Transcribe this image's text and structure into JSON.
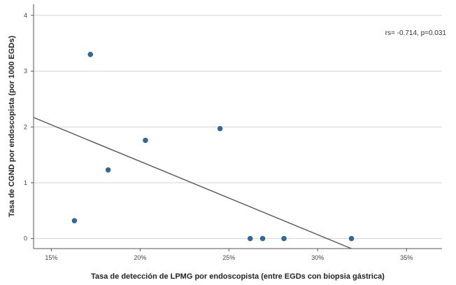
{
  "chart_data": {
    "type": "scatter",
    "title": "",
    "xlabel": "Tasa de detección de LPMG por endoscopista (entre EGDs con biopsia gástrica)",
    "ylabel": "Tasa de CGND por endoscopista (por 1000 EGDs)",
    "xlim": [
      14.0,
      37.0
    ],
    "ylim": [
      -0.18,
      4.2
    ],
    "x_ticks": [
      15,
      20,
      25,
      30,
      35
    ],
    "x_tick_labels": [
      "15%",
      "20%",
      "25%",
      "30%",
      "35%"
    ],
    "y_ticks": [
      0,
      1,
      2,
      3,
      4
    ],
    "y_tick_labels": [
      "0",
      "1",
      "2",
      "3",
      "4"
    ],
    "grid": "horizontal",
    "legend": "none",
    "annotation": "rs= -0.714, p=0.031",
    "point_color": "#2e6b9e",
    "line_color": "#555555",
    "points": [
      {
        "x": 16.3,
        "y": 0.32
      },
      {
        "x": 17.2,
        "y": 3.3
      },
      {
        "x": 18.2,
        "y": 1.23
      },
      {
        "x": 20.3,
        "y": 1.76
      },
      {
        "x": 24.5,
        "y": 1.97
      },
      {
        "x": 26.2,
        "y": 0.0
      },
      {
        "x": 26.9,
        "y": 0.0
      },
      {
        "x": 28.1,
        "y": 0.0
      },
      {
        "x": 31.9,
        "y": 0.0
      }
    ],
    "fit_line": {
      "x": [
        14.0,
        32.2
      ],
      "y": [
        2.17,
        -0.22
      ]
    }
  }
}
